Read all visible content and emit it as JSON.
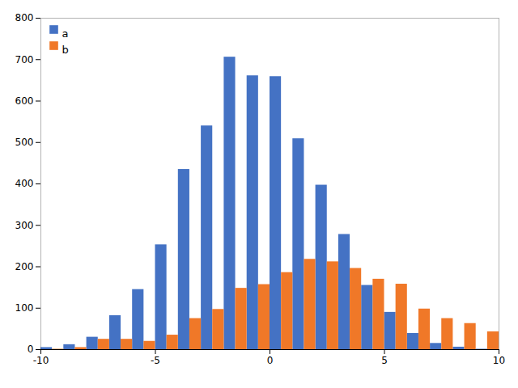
{
  "chart_data": {
    "type": "histogram",
    "bins": [
      -10,
      -9,
      -8,
      -7,
      -6,
      -5,
      -4,
      -3,
      -2,
      -1,
      0,
      1,
      2,
      3,
      4,
      5,
      6,
      7,
      8,
      9,
      10
    ],
    "series": [
      {
        "name": "a",
        "color": "#4472c4",
        "values": [
          5,
          12,
          30,
          82,
          145,
          253,
          435,
          540,
          706,
          661,
          659,
          509,
          397,
          278,
          155,
          90,
          39,
          15,
          6,
          1
        ]
      },
      {
        "name": "b",
        "color": "#f07828",
        "values": [
          1,
          5,
          25,
          25,
          20,
          35,
          75,
          97,
          148,
          157,
          186,
          218,
          212,
          196,
          170,
          158,
          98,
          75,
          63,
          43
        ]
      }
    ],
    "xlim": [
      -10,
      10
    ],
    "xticks": [
      -10,
      -5,
      0,
      5,
      10
    ],
    "ylim": [
      0,
      800
    ],
    "yticks": [
      0,
      100,
      200,
      300,
      400,
      500,
      600,
      700,
      800
    ],
    "grid": false,
    "legend": "upper left"
  }
}
